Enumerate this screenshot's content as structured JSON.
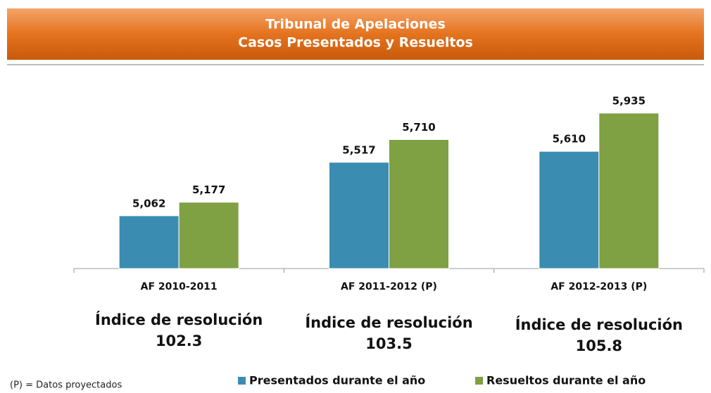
{
  "chart_data": {
    "type": "bar",
    "title": "Tribunal de Apelaciones",
    "subtitle": "Casos Presentados y Resueltos",
    "categories": [
      "AF 2010-2011",
      "AF 2011-2012 (P)",
      "AF 2012-2013 (P)"
    ],
    "series": [
      {
        "name": "Presentados durante el año",
        "color": "#3a8db0",
        "values": [
          5062,
          5517,
          5610
        ],
        "value_labels": [
          "5,062",
          "5,517",
          "5,610"
        ]
      },
      {
        "name": "Resueltos durante el año",
        "color": "#7fa043",
        "values": [
          5177,
          5710,
          5935
        ],
        "value_labels": [
          "5,177",
          "5,710",
          "5,935"
        ]
      }
    ],
    "ylim": [
      4613,
      6000
    ],
    "annotations": [
      {
        "label": "Índice de resolución",
        "value": 102.3
      },
      {
        "label": "Índice de resolución",
        "value": 103.5
      },
      {
        "label": "Índice de resolución",
        "value": 105.8
      }
    ],
    "footnote": "(P) = Datos proyectados"
  }
}
